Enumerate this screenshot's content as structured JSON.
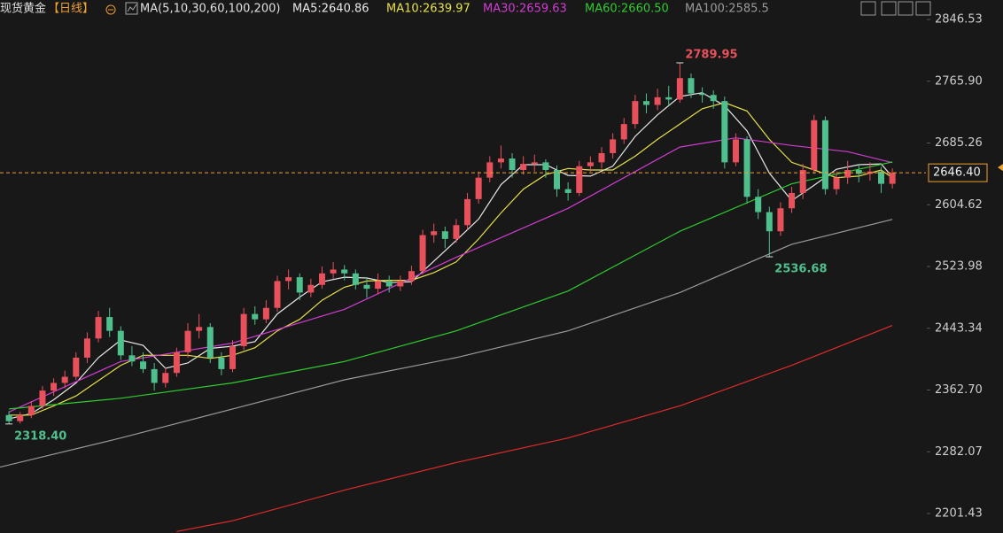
{
  "chart_data": {
    "type": "candlestick",
    "symbol": "现货黄金",
    "period": "【日线】",
    "ma_params": "MA(5,10,30,60,100,200)",
    "up_color": "#e8505b",
    "down_color": "#4fc08d",
    "ylim": [
      2176,
      2872
    ],
    "xlim": [
      -0.8,
      82
    ],
    "yticks": [
      2846.53,
      {
        "value": 2765.9,
        "label": "2765.90"
      },
      2685.26,
      2604.62,
      2523.98,
      2443.34,
      {
        "value": 2362.7,
        "label": "2362.70"
      },
      2282.07,
      2201.43
    ],
    "current_price": {
      "value": 2646.4,
      "label": "2646.40",
      "color": "#f0a030"
    },
    "annotations": [
      {
        "x": 60,
        "value": 2789.95,
        "color": "#e8505b"
      },
      {
        "x": 68,
        "value": 2536.68,
        "color": "#4fc08d"
      },
      {
        "x": 0,
        "value": 2318.4,
        "label": "2318.40",
        "color": "#4fc08d"
      }
    ],
    "ohlc": [
      [
        2330,
        2335,
        2318.4,
        2322
      ],
      [
        2322,
        2334,
        2319,
        2330
      ],
      [
        2330,
        2348,
        2326,
        2342
      ],
      [
        2342,
        2368,
        2338,
        2362
      ],
      [
        2362,
        2378,
        2355,
        2372
      ],
      [
        2372,
        2388,
        2365,
        2380
      ],
      [
        2380,
        2412,
        2376,
        2405
      ],
      [
        2405,
        2438,
        2398,
        2430
      ],
      [
        2430,
        2466,
        2425,
        2458
      ],
      [
        2458,
        2470,
        2432,
        2440
      ],
      [
        2440,
        2446,
        2402,
        2408
      ],
      [
        2408,
        2420,
        2394,
        2400
      ],
      [
        2400,
        2412,
        2385,
        2390
      ],
      [
        2390,
        2398,
        2362,
        2372
      ],
      [
        2372,
        2392,
        2366,
        2385
      ],
      [
        2385,
        2418,
        2380,
        2412
      ],
      [
        2412,
        2450,
        2405,
        2440
      ],
      [
        2440,
        2462,
        2430,
        2445
      ],
      [
        2445,
        2450,
        2398,
        2405
      ],
      [
        2405,
        2412,
        2382,
        2390
      ],
      [
        2390,
        2428,
        2386,
        2420
      ],
      [
        2420,
        2470,
        2415,
        2462
      ],
      [
        2462,
        2472,
        2448,
        2455
      ],
      [
        2455,
        2480,
        2450,
        2470
      ],
      [
        2470,
        2512,
        2465,
        2505
      ],
      [
        2505,
        2520,
        2494,
        2510
      ],
      [
        2510,
        2515,
        2480,
        2490
      ],
      [
        2490,
        2508,
        2484,
        2500
      ],
      [
        2500,
        2524,
        2495,
        2515
      ],
      [
        2515,
        2530,
        2508,
        2520
      ],
      [
        2520,
        2526,
        2506,
        2515
      ],
      [
        2515,
        2520,
        2494,
        2500
      ],
      [
        2500,
        2510,
        2483,
        2495
      ],
      [
        2495,
        2515,
        2488,
        2505
      ],
      [
        2505,
        2512,
        2490,
        2498
      ],
      [
        2498,
        2512,
        2492,
        2505
      ],
      [
        2505,
        2525,
        2500,
        2518
      ],
      [
        2518,
        2572,
        2514,
        2565
      ],
      [
        2565,
        2580,
        2555,
        2570
      ],
      [
        2570,
        2576,
        2548,
        2560
      ],
      [
        2560,
        2586,
        2555,
        2578
      ],
      [
        2578,
        2620,
        2572,
        2612
      ],
      [
        2612,
        2648,
        2606,
        2640
      ],
      [
        2640,
        2668,
        2634,
        2660
      ],
      [
        2660,
        2682,
        2652,
        2665
      ],
      [
        2665,
        2672,
        2640,
        2650
      ],
      [
        2650,
        2668,
        2644,
        2658
      ],
      [
        2658,
        2670,
        2648,
        2660
      ],
      [
        2660,
        2664,
        2640,
        2650
      ],
      [
        2650,
        2656,
        2615,
        2625
      ],
      [
        2625,
        2634,
        2610,
        2620
      ],
      [
        2620,
        2662,
        2616,
        2655
      ],
      [
        2655,
        2668,
        2648,
        2660
      ],
      [
        2660,
        2680,
        2652,
        2672
      ],
      [
        2672,
        2698,
        2665,
        2690
      ],
      [
        2690,
        2718,
        2684,
        2710
      ],
      [
        2710,
        2748,
        2704,
        2740
      ],
      [
        2740,
        2750,
        2724,
        2735
      ],
      [
        2735,
        2756,
        2728,
        2745
      ],
      [
        2745,
        2760,
        2734,
        2742
      ],
      [
        2742,
        2789.95,
        2738,
        2770
      ],
      [
        2770,
        2776,
        2744,
        2750
      ],
      [
        2750,
        2758,
        2738,
        2748
      ],
      [
        2748,
        2754,
        2730,
        2740
      ],
      [
        2740,
        2746,
        2652,
        2660
      ],
      [
        2660,
        2698,
        2655,
        2690
      ],
      [
        2690,
        2694,
        2606,
        2615
      ],
      [
        2615,
        2625,
        2586,
        2595
      ],
      [
        2595,
        2602,
        2536.68,
        2570
      ],
      [
        2570,
        2608,
        2564,
        2600
      ],
      [
        2600,
        2628,
        2594,
        2620
      ],
      [
        2620,
        2658,
        2612,
        2650
      ],
      [
        2650,
        2722,
        2645,
        2715
      ],
      [
        2715,
        2720,
        2618,
        2625
      ],
      [
        2625,
        2648,
        2618,
        2640
      ],
      [
        2640,
        2662,
        2632,
        2650
      ],
      [
        2650,
        2658,
        2634,
        2645
      ],
      [
        2645,
        2660,
        2636,
        2648
      ],
      [
        2648,
        2654,
        2620,
        2632
      ],
      [
        2632,
        2652,
        2626,
        2646.4
      ]
    ],
    "series": [
      {
        "name": "MA5:2640.86",
        "color": "#e8e8e8",
        "x": [
          0,
          2,
          4,
          6,
          8,
          10,
          12,
          14,
          16,
          18,
          20,
          22,
          24,
          26,
          28,
          30,
          32,
          34,
          36,
          38,
          40,
          42,
          44,
          46,
          48,
          50,
          52,
          54,
          56,
          58,
          60,
          62,
          64,
          66,
          68,
          70,
          72,
          74,
          76,
          78,
          79
        ],
        "values": [
          2325,
          2332,
          2350,
          2372,
          2405,
          2428,
          2421,
          2391,
          2398,
          2417,
          2420,
          2426,
          2462,
          2484,
          2504,
          2510,
          2509,
          2503,
          2504,
          2531,
          2558,
          2586,
          2631,
          2657,
          2657,
          2643,
          2642,
          2655,
          2694,
          2722,
          2746,
          2751,
          2734,
          2701,
          2646,
          2610,
          2630,
          2651,
          2657,
          2658,
          2640.86
        ]
      },
      {
        "name": "MA10:2639.97",
        "color": "#e6e04a",
        "x": [
          0,
          2,
          4,
          6,
          8,
          10,
          12,
          14,
          16,
          18,
          20,
          22,
          24,
          26,
          28,
          30,
          32,
          34,
          36,
          38,
          40,
          42,
          44,
          46,
          48,
          50,
          52,
          54,
          56,
          58,
          60,
          62,
          64,
          66,
          68,
          70,
          72,
          74,
          76,
          78,
          79
        ],
        "values": [
          2330,
          2330,
          2342,
          2355,
          2375,
          2395,
          2408,
          2408,
          2408,
          2404,
          2408,
          2418,
          2440,
          2455,
          2480,
          2497,
          2505,
          2506,
          2506,
          2516,
          2530,
          2560,
          2594,
          2625,
          2644,
          2652,
          2650,
          2650,
          2668,
          2690,
          2710,
          2730,
          2738,
          2727,
          2690,
          2660,
          2650,
          2640,
          2642,
          2650,
          2639.97
        ]
      },
      {
        "name": "MA30:2659.63",
        "color": "#d23bd2",
        "x": [
          0,
          10,
          20,
          30,
          40,
          50,
          60,
          65,
          70,
          75,
          79
        ],
        "values": [
          2334,
          2400,
          2424,
          2468,
          2536,
          2600,
          2680,
          2692,
          2682,
          2674,
          2659.63
        ]
      },
      {
        "name": "MA60:2660.50",
        "color": "#2ecc2e",
        "x": [
          0,
          10,
          20,
          30,
          40,
          50,
          60,
          70,
          79
        ],
        "values": [
          2338,
          2352,
          2372,
          2400,
          2440,
          2492,
          2570,
          2632,
          2660.5
        ]
      },
      {
        "name": "MA100:2585.5",
        "color": "#9a9a9a",
        "x": [
          -0.8,
          10,
          20,
          30,
          40,
          50,
          60,
          70,
          79
        ],
        "values": [
          2262,
          2300,
          2338,
          2376,
          2405,
          2440,
          2490,
          2553,
          2585.5
        ]
      },
      {
        "color": "#e02a2a",
        "x": [
          15,
          20,
          30,
          40,
          50,
          60,
          70,
          79
        ],
        "values": [
          2178,
          2192,
          2232,
          2268,
          2300,
          2342,
          2395,
          2447
        ]
      }
    ]
  }
}
